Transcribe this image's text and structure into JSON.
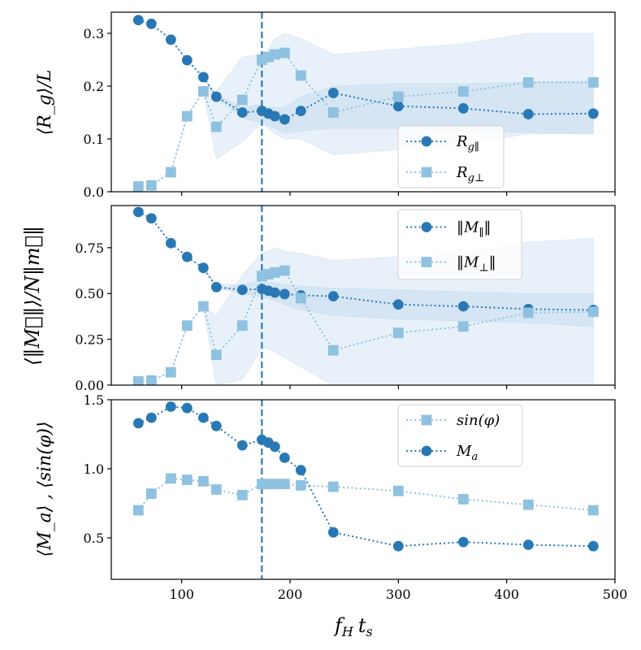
{
  "colors": {
    "dark": "#2878b5",
    "light": "#8fc1e0",
    "band": "#c6dbef",
    "vline": "#2b7bba"
  },
  "chart_data": [
    {
      "type": "line",
      "ylabel": "⟨R_g⟩/L",
      "ylim": [
        0,
        0.34
      ],
      "yticks": [
        0.0,
        0.1,
        0.2,
        0.3
      ],
      "ytick_labels": [
        "0.0",
        "0.1",
        "0.2",
        "0.3"
      ],
      "xlim": [
        35,
        500
      ],
      "legend_position": "lower-right",
      "series": [
        {
          "name": "R_g∥",
          "legend_label": "R",
          "legend_sub": "g∥",
          "color_key": "dark",
          "marker": "circle",
          "x": [
            60,
            72,
            90,
            105,
            120,
            132,
            156,
            174,
            180,
            186,
            195,
            210,
            240,
            300,
            360,
            420,
            480
          ],
          "y": [
            0.325,
            0.318,
            0.288,
            0.249,
            0.217,
            0.18,
            0.15,
            0.153,
            0.148,
            0.143,
            0.137,
            0.153,
            0.187,
            0.162,
            0.158,
            0.147,
            0.148
          ],
          "band_low": [
            0.325,
            0.318,
            0.288,
            0.249,
            0.217,
            0.175,
            0.14,
            0.13,
            0.125,
            0.12,
            0.11,
            0.115,
            0.12,
            0.12,
            0.115,
            0.112,
            0.11
          ],
          "band_high": [
            0.325,
            0.318,
            0.288,
            0.249,
            0.217,
            0.185,
            0.16,
            0.165,
            0.16,
            0.16,
            0.16,
            0.18,
            0.2,
            0.205,
            0.205,
            0.208,
            0.21
          ]
        },
        {
          "name": "R_g⊥",
          "legend_label": "R",
          "legend_sub": "g⊥",
          "color_key": "light",
          "marker": "square",
          "x": [
            60,
            72,
            90,
            105,
            120,
            132,
            156,
            174,
            180,
            186,
            195,
            210,
            240,
            300,
            360,
            420,
            480
          ],
          "y": [
            0.01,
            0.012,
            0.037,
            0.143,
            0.19,
            0.123,
            0.174,
            0.25,
            0.255,
            0.26,
            0.263,
            0.22,
            0.15,
            0.18,
            0.19,
            0.207,
            0.207
          ],
          "band_low": [
            0.01,
            0.012,
            0.037,
            0.143,
            0.19,
            0.062,
            0.095,
            0.13,
            0.12,
            0.11,
            0.1,
            0.1,
            0.07,
            0.08,
            0.09,
            0.11,
            0.11
          ],
          "band_high": [
            0.01,
            0.012,
            0.037,
            0.143,
            0.19,
            0.19,
            0.255,
            0.26,
            0.27,
            0.29,
            0.3,
            0.29,
            0.26,
            0.27,
            0.28,
            0.3,
            0.3
          ]
        }
      ]
    },
    {
      "type": "line",
      "ylabel": "⟨‖M⃗‖⟩/N‖m⃗‖",
      "ylim": [
        0,
        0.98
      ],
      "yticks": [
        0.0,
        0.25,
        0.5,
        0.75
      ],
      "ytick_labels": [
        "0.00",
        "0.25",
        "0.50",
        "0.75"
      ],
      "xlim": [
        35,
        500
      ],
      "legend_position": "upper-right",
      "series": [
        {
          "name": "‖M∥‖",
          "legend_label": "‖M",
          "legend_sub": "∥",
          "legend_tail": "‖",
          "color_key": "dark",
          "marker": "circle",
          "x": [
            60,
            72,
            90,
            105,
            120,
            132,
            156,
            174,
            180,
            186,
            195,
            210,
            240,
            300,
            360,
            420,
            480
          ],
          "y": [
            0.945,
            0.91,
            0.775,
            0.7,
            0.64,
            0.535,
            0.52,
            0.525,
            0.515,
            0.505,
            0.497,
            0.49,
            0.485,
            0.44,
            0.43,
            0.415,
            0.41
          ],
          "band_low": [
            0.945,
            0.91,
            0.775,
            0.7,
            0.64,
            0.53,
            0.5,
            0.48,
            0.47,
            0.46,
            0.44,
            0.41,
            0.38,
            0.36,
            0.35,
            0.34,
            0.32
          ],
          "band_high": [
            0.945,
            0.91,
            0.775,
            0.7,
            0.64,
            0.55,
            0.55,
            0.57,
            0.56,
            0.56,
            0.55,
            0.54,
            0.53,
            0.52,
            0.51,
            0.5,
            0.5
          ]
        },
        {
          "name": "‖M⊥‖",
          "legend_label": "‖M",
          "legend_sub": "⊥",
          "legend_tail": "‖",
          "color_key": "light",
          "marker": "square",
          "x": [
            60,
            72,
            90,
            105,
            120,
            132,
            156,
            174,
            180,
            186,
            195,
            210,
            240,
            300,
            360,
            420,
            480
          ],
          "y": [
            0.02,
            0.025,
            0.07,
            0.325,
            0.43,
            0.165,
            0.325,
            0.595,
            0.605,
            0.615,
            0.625,
            0.475,
            0.19,
            0.285,
            0.32,
            0.395,
            0.4
          ],
          "band_low": [
            0.02,
            0.025,
            0.07,
            0.325,
            0.43,
            0.0,
            0.03,
            0.2,
            0.2,
            0.18,
            0.15,
            0.1,
            0.0,
            0.0,
            0.0,
            0.0,
            0.0
          ],
          "band_high": [
            0.02,
            0.025,
            0.07,
            0.325,
            0.43,
            0.38,
            0.6,
            0.72,
            0.73,
            0.75,
            0.73,
            0.72,
            0.68,
            0.7,
            0.72,
            0.78,
            0.8
          ]
        }
      ]
    },
    {
      "type": "line",
      "ylabel": "⟨M_a⟩ , ⟨sin(φ)⟩",
      "ylim": [
        0.2,
        1.5
      ],
      "yticks": [
        0.5,
        1.0,
        1.5
      ],
      "ytick_labels": [
        "0.5",
        "1.0",
        "1.5"
      ],
      "xlim": [
        35,
        500
      ],
      "xticks": [
        100,
        200,
        300,
        400,
        500
      ],
      "xtick_labels": [
        "100",
        "200",
        "300",
        "400",
        "500"
      ],
      "xlabel": "f_H t_s",
      "legend_position": "top-right",
      "series": [
        {
          "name": "sin(φ)",
          "legend_label": "sin(φ)",
          "color_key": "light",
          "marker": "square",
          "x": [
            60,
            72,
            90,
            105,
            120,
            132,
            156,
            174,
            180,
            186,
            195,
            210,
            240,
            300,
            360,
            420,
            480
          ],
          "y": [
            0.7,
            0.82,
            0.93,
            0.92,
            0.91,
            0.85,
            0.81,
            0.89,
            0.89,
            0.89,
            0.89,
            0.88,
            0.87,
            0.84,
            0.78,
            0.74,
            0.7
          ]
        },
        {
          "name": "M_a",
          "legend_label": "M",
          "legend_sub": "a",
          "color_key": "dark",
          "marker": "circle",
          "x": [
            60,
            72,
            90,
            105,
            120,
            132,
            156,
            174,
            180,
            186,
            195,
            210,
            240,
            300,
            360,
            420,
            480
          ],
          "y": [
            1.33,
            1.37,
            1.45,
            1.44,
            1.37,
            1.31,
            1.17,
            1.21,
            1.19,
            1.16,
            1.08,
            0.99,
            0.54,
            0.44,
            0.47,
            0.45,
            0.44
          ]
        }
      ]
    }
  ],
  "vline_x": 174,
  "xlabel": {
    "f": "f",
    "sub_H": "H",
    "t": "t",
    "sub_s": "s"
  }
}
